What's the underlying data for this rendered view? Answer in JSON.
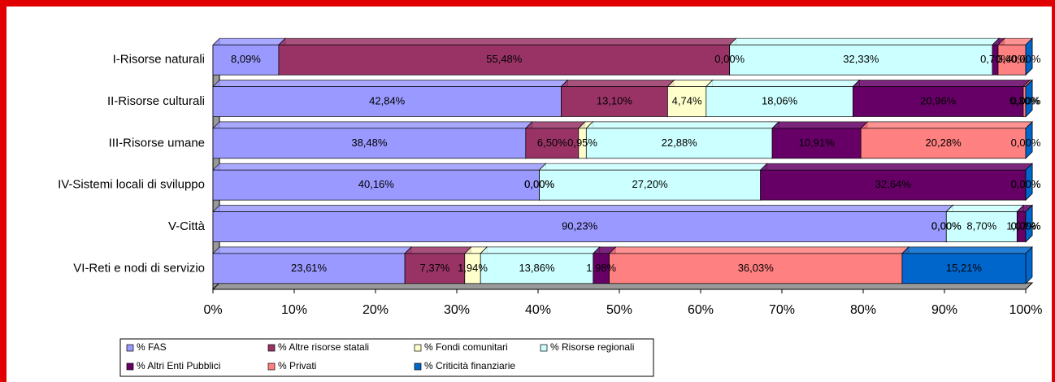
{
  "chart_data": {
    "type": "stacked_bar_horizontal_percent",
    "categories": [
      "I-Risorse naturali",
      "II-Risorse culturali",
      "III-Risorse umane",
      "IV-Sistemi locali di sviluppo",
      "V-Città",
      "VI-Reti e nodi di servizio"
    ],
    "series": [
      {
        "name": "% FAS",
        "color": "#9999ff",
        "values": [
          8.09,
          42.84,
          38.48,
          40.16,
          90.23,
          23.61
        ],
        "value_labels": [
          "8,09%",
          "42,84%",
          "38,48%",
          "40,16%",
          "90,23%",
          "23,61%"
        ]
      },
      {
        "name": "% Altre risorse statali",
        "color": "#993366",
        "values": [
          55.48,
          13.1,
          6.5,
          0.0,
          0.0,
          7.37
        ],
        "value_labels": [
          "55,48%",
          "13,10%",
          "6,50%",
          "0,00%",
          "0,00%",
          "7,37%"
        ]
      },
      {
        "name": "% Fondi comunitari",
        "color": "#ffffcc",
        "values": [
          0.0,
          4.74,
          0.95,
          0.0,
          0.0,
          1.94
        ],
        "value_labels": [
          "0,00%",
          "4,74%",
          "0,95%",
          "0,00%",
          "0,00%",
          "1,94%"
        ]
      },
      {
        "name": "% Risorse regionali",
        "color": "#ccffff",
        "values": [
          32.33,
          18.06,
          22.88,
          27.2,
          8.7,
          13.86
        ],
        "value_labels": [
          "32,33%",
          "18,06%",
          "22,88%",
          "27,20%",
          "8,70%",
          "13,86%"
        ]
      },
      {
        "name": "% Altri Enti Pubblici",
        "color": "#660066",
        "values": [
          0.7,
          20.96,
          10.91,
          32.64,
          1.07,
          1.98
        ],
        "value_labels": [
          "0,70%",
          "20,96%",
          "10,91%",
          "32,64%",
          "1,07%",
          "1,98%"
        ]
      },
      {
        "name": "% Privati",
        "color": "#ff8080",
        "values": [
          3.4,
          0.3,
          20.28,
          0.0,
          0.0,
          36.03
        ],
        "value_labels": [
          "3,40%",
          "0,30%",
          "20,28%",
          "0,00%",
          "0,00%",
          "36,03%"
        ]
      },
      {
        "name": "% Criticità finanziarie",
        "color": "#0066cc",
        "values": [
          0.0,
          0.0,
          0.0,
          0.0,
          0.0,
          15.21
        ],
        "value_labels": [
          "0,00%",
          "0,00%",
          "0,00%",
          "0,00%",
          "0,00%",
          "15,21%"
        ]
      }
    ],
    "xlim": [
      0,
      100
    ],
    "xticks": [
      {
        "value": 0,
        "label": "0%"
      },
      {
        "value": 10,
        "label": "10%"
      },
      {
        "value": 20,
        "label": "20%"
      },
      {
        "value": 30,
        "label": "30%"
      },
      {
        "value": 40,
        "label": "40%"
      },
      {
        "value": 50,
        "label": "50%"
      },
      {
        "value": 60,
        "label": "60%"
      },
      {
        "value": 70,
        "label": "70%"
      },
      {
        "value": 80,
        "label": "80%"
      },
      {
        "value": 90,
        "label": "90%"
      },
      {
        "value": 100,
        "label": "100%"
      }
    ]
  }
}
